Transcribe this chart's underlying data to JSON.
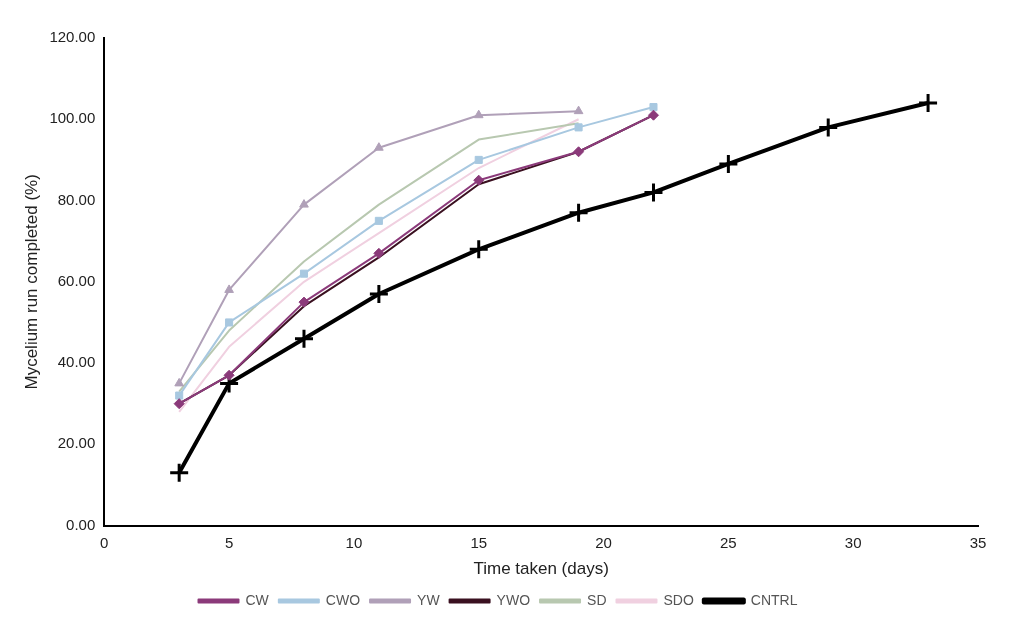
{
  "chart_data": {
    "type": "line",
    "xlabel": "Time taken (days)",
    "ylabel": "Mycelium run completed (%)",
    "xlim": [
      0,
      35
    ],
    "xticks": [
      0,
      5,
      10,
      15,
      20,
      25,
      30,
      35
    ],
    "ylim": [
      0,
      120
    ],
    "yticks": [
      {
        "value": 0,
        "label": "0.00"
      },
      {
        "value": 20,
        "label": "20.00"
      },
      {
        "value": 40,
        "label": "40.00"
      },
      {
        "value": 60,
        "label": "60.00"
      },
      {
        "value": 80,
        "label": "80.00"
      },
      {
        "value": 100,
        "label": "100.00"
      },
      {
        "value": 120,
        "label": "120.00"
      }
    ],
    "grid": false,
    "legend": "bottom",
    "series": [
      {
        "name": "CW",
        "color": "#8b3a7a",
        "marker": "diamond",
        "x": [
          3,
          5,
          8,
          11,
          15,
          19,
          22
        ],
        "values": [
          30,
          37,
          55,
          67,
          85,
          92,
          101
        ]
      },
      {
        "name": "CWO",
        "color": "#a8c8e0",
        "marker": "square",
        "x": [
          3,
          5,
          8,
          11,
          15,
          19,
          22
        ],
        "values": [
          32,
          50,
          62,
          75,
          90,
          98,
          103
        ]
      },
      {
        "name": "YW",
        "color": "#b0a0b8",
        "marker": "triangle",
        "x": [
          3,
          5,
          8,
          11,
          15,
          19
        ],
        "values": [
          35,
          58,
          79,
          93,
          101,
          102
        ]
      },
      {
        "name": "YWO",
        "color": "#3a1020",
        "marker": "none",
        "x": [
          3,
          5,
          8,
          11,
          15,
          19,
          22
        ],
        "values": [
          30,
          37,
          54,
          66,
          84,
          92,
          101
        ]
      },
      {
        "name": "SD",
        "color": "#b8c8b0",
        "marker": "none",
        "x": [
          3,
          5,
          8,
          11,
          15,
          19
        ],
        "values": [
          33,
          48,
          65,
          79,
          95,
          99
        ]
      },
      {
        "name": "SDO",
        "color": "#f0d0e0",
        "marker": "none",
        "x": [
          3,
          5,
          8,
          11,
          15,
          19
        ],
        "values": [
          28,
          44,
          60,
          72,
          88,
          100
        ]
      },
      {
        "name": "CNTRL",
        "color": "#000000",
        "marker": "cross",
        "x": [
          3,
          5,
          8,
          11,
          15,
          19,
          22,
          25,
          29,
          33
        ],
        "values": [
          13,
          35,
          46,
          57,
          68,
          77,
          82,
          89,
          98,
          104
        ]
      }
    ]
  }
}
